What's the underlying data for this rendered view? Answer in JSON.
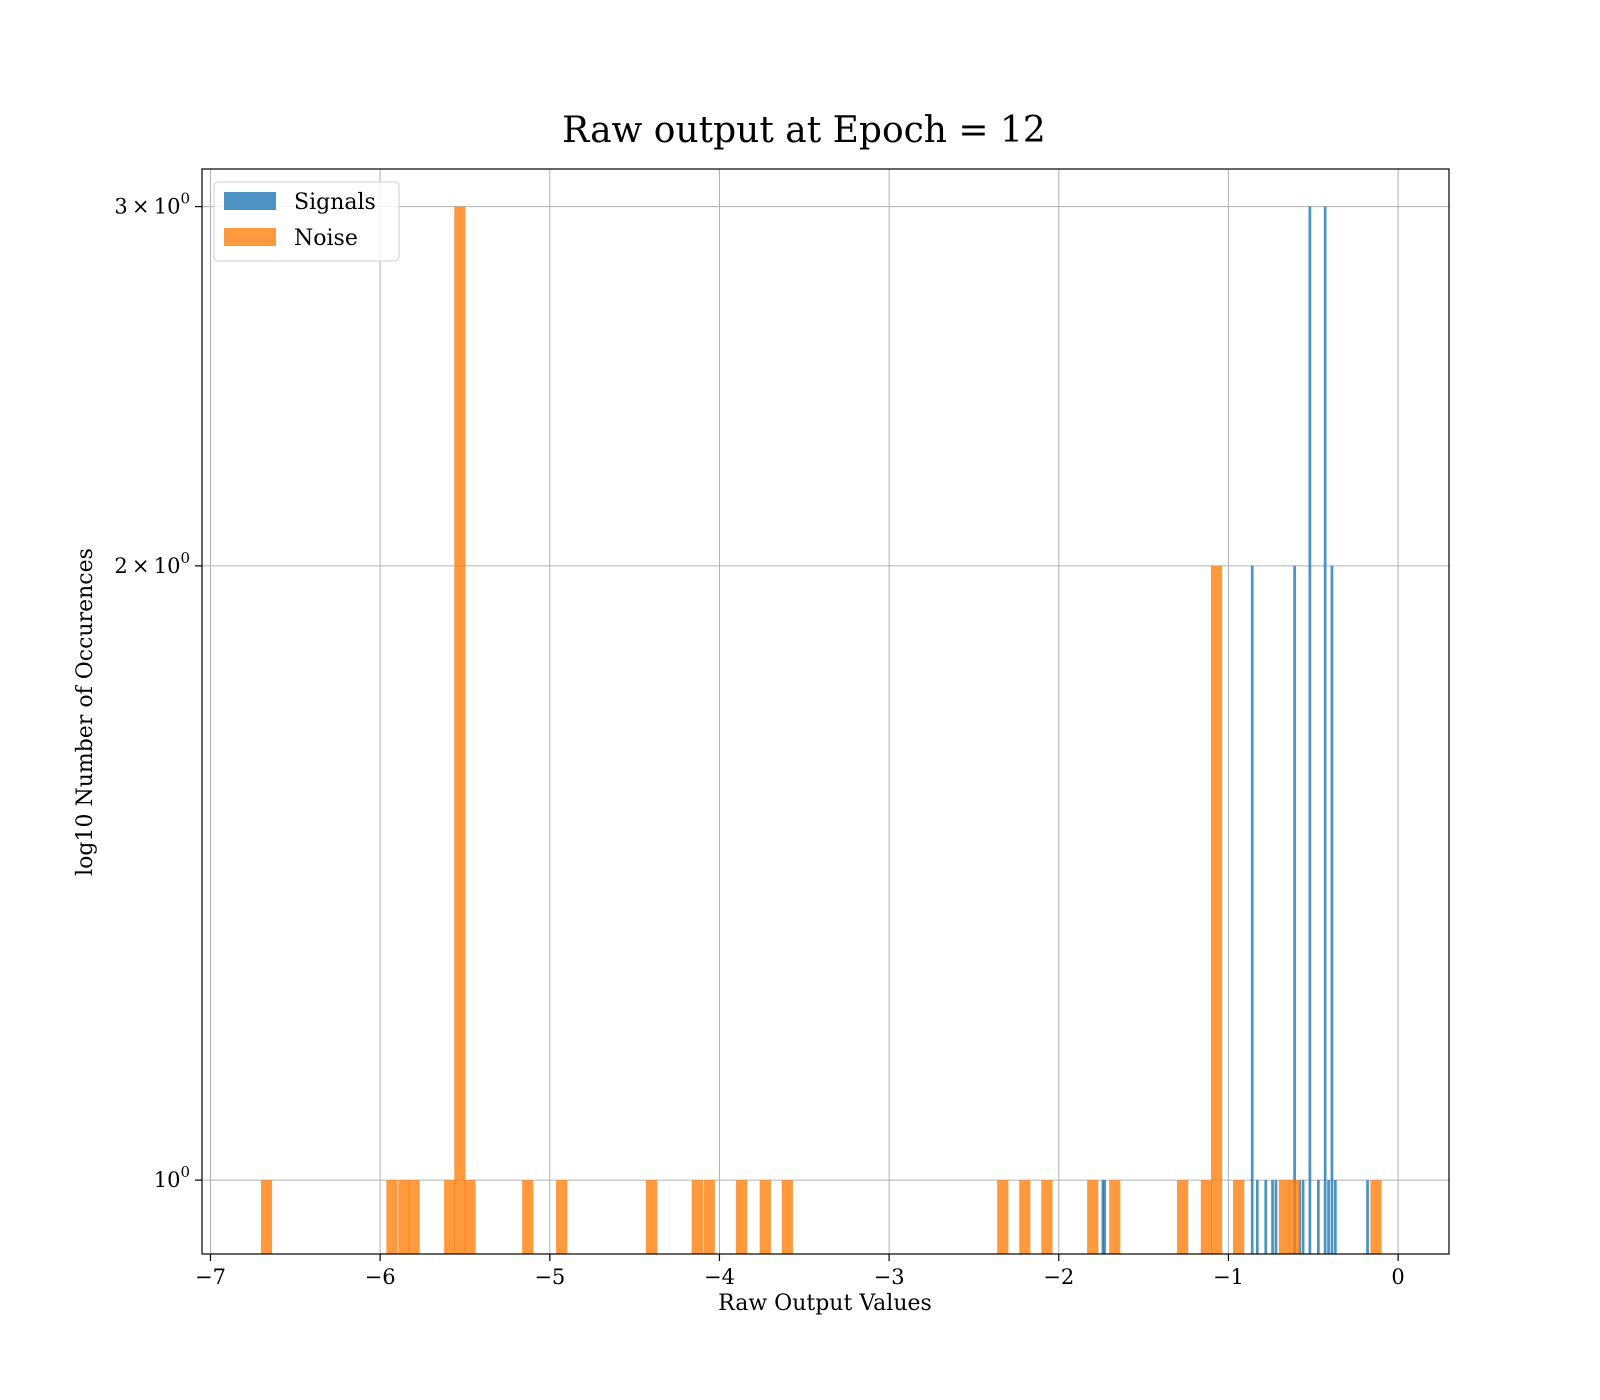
{
  "colors": {
    "signals": "#1f77b4",
    "noise": "#ff7f0e",
    "grid": "#b0b0b0",
    "axes": "#000000"
  },
  "chart_data": {
    "type": "bar",
    "title": "Raw output at Epoch = 12",
    "xlabel": "Raw Output Values",
    "ylabel": "log10 Number of Occurences",
    "xlim": [
      -7.05,
      0.3
    ],
    "ylim": [
      0.92,
      3.13
    ],
    "yscale": "log",
    "grid": true,
    "legend_position": "top-left",
    "xticks": [
      {
        "value": -7,
        "label": "−7"
      },
      {
        "value": -6,
        "label": "−6"
      },
      {
        "value": -5,
        "label": "−5"
      },
      {
        "value": -4,
        "label": "−4"
      },
      {
        "value": -3,
        "label": "−3"
      },
      {
        "value": -2,
        "label": "−2"
      },
      {
        "value": -1,
        "label": "−1"
      },
      {
        "value": 0,
        "label": "0"
      }
    ],
    "yticks": [
      {
        "value": 1,
        "base": "10",
        "exp": "0"
      },
      {
        "value": 2,
        "base": "2 × 10",
        "exp": "0"
      },
      {
        "value": 3,
        "base": "3 × 10",
        "exp": "0"
      }
    ],
    "series": [
      {
        "name": "Signals",
        "bin_width": 0.016,
        "bins": [
          {
            "x": -1.74,
            "count": 1
          },
          {
            "x": -1.73,
            "count": 1
          },
          {
            "x": -0.86,
            "count": 2
          },
          {
            "x": -0.83,
            "count": 1
          },
          {
            "x": -0.78,
            "count": 1
          },
          {
            "x": -0.74,
            "count": 1
          },
          {
            "x": -0.72,
            "count": 1
          },
          {
            "x": -0.61,
            "count": 2
          },
          {
            "x": -0.58,
            "count": 1
          },
          {
            "x": -0.56,
            "count": 1
          },
          {
            "x": -0.52,
            "count": 3
          },
          {
            "x": -0.47,
            "count": 1
          },
          {
            "x": -0.43,
            "count": 3
          },
          {
            "x": -0.41,
            "count": 1
          },
          {
            "x": -0.39,
            "count": 2
          },
          {
            "x": -0.37,
            "count": 1
          },
          {
            "x": -0.18,
            "count": 1
          }
        ]
      },
      {
        "name": "Noise",
        "bin_width": 0.066,
        "bins": [
          {
            "x": -6.67,
            "count": 1
          },
          {
            "x": -5.93,
            "count": 1
          },
          {
            "x": -5.86,
            "count": 1
          },
          {
            "x": -5.8,
            "count": 1
          },
          {
            "x": -5.59,
            "count": 1
          },
          {
            "x": -5.53,
            "count": 3
          },
          {
            "x": -5.47,
            "count": 1
          },
          {
            "x": -5.13,
            "count": 1
          },
          {
            "x": -4.93,
            "count": 1
          },
          {
            "x": -4.4,
            "count": 1
          },
          {
            "x": -4.13,
            "count": 1
          },
          {
            "x": -4.06,
            "count": 1
          },
          {
            "x": -3.87,
            "count": 1
          },
          {
            "x": -3.73,
            "count": 1
          },
          {
            "x": -3.6,
            "count": 1
          },
          {
            "x": -2.33,
            "count": 1
          },
          {
            "x": -2.2,
            "count": 1
          },
          {
            "x": -2.07,
            "count": 1
          },
          {
            "x": -1.8,
            "count": 1
          },
          {
            "x": -1.67,
            "count": 1
          },
          {
            "x": -1.27,
            "count": 1
          },
          {
            "x": -1.13,
            "count": 1
          },
          {
            "x": -1.07,
            "count": 2
          },
          {
            "x": -0.94,
            "count": 1
          },
          {
            "x": -0.67,
            "count": 1
          },
          {
            "x": -0.61,
            "count": 1
          },
          {
            "x": -0.13,
            "count": 1
          }
        ]
      }
    ]
  }
}
